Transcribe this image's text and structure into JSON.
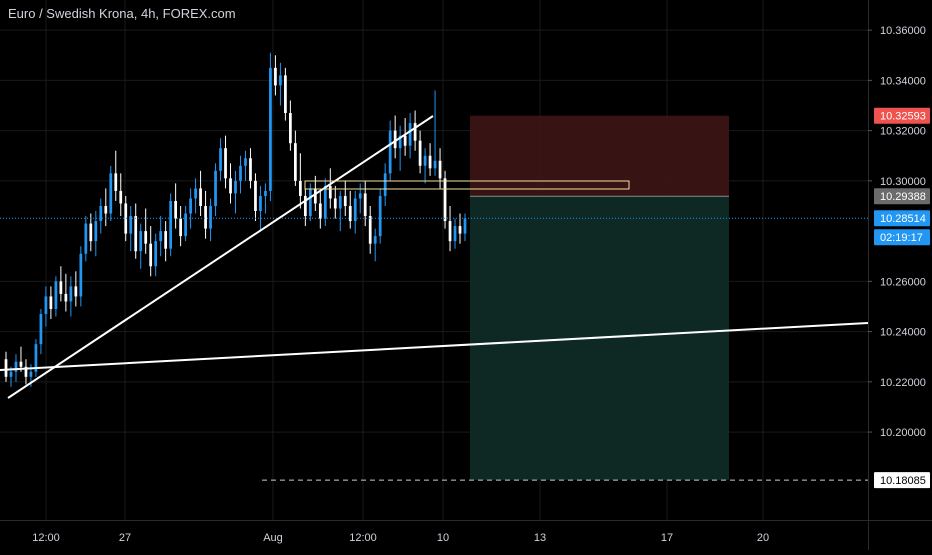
{
  "chart_data": {
    "type": "candlestick",
    "title": "Euro / Swedish Krona, 4h, FOREX.com",
    "ylim": [
      10.165,
      10.372
    ],
    "y_ticks": [
      "10.36000",
      "10.34000",
      "10.32000",
      "10.30000",
      "10.26000",
      "10.24000",
      "10.22000",
      "10.20000"
    ],
    "y_tick_values": [
      10.36,
      10.34,
      10.32,
      10.3,
      10.26,
      10.24,
      10.22,
      10.2
    ],
    "x_ticks": [
      "12:00",
      "27",
      "Aug",
      "12:00",
      "10",
      "13",
      "17",
      "20"
    ],
    "price_labels": [
      {
        "text": "10.32593",
        "value": 10.32593,
        "color": "#ef5350"
      },
      {
        "text": "10.29388",
        "value": 10.29388,
        "color": "#6b6b6b"
      },
      {
        "text": "10.28514",
        "value": 10.28514,
        "color": "#2196f3"
      },
      {
        "text": "02:19:17",
        "value": 10.2801,
        "color": "#2196f3"
      },
      {
        "text": "10.18085",
        "value": 10.18085,
        "color": "#ffffff"
      }
    ],
    "current_price": 10.28514,
    "entry_price": 10.29388,
    "stop_loss": 10.32593,
    "take_profit": 10.18085,
    "colors": {
      "up": "#2196f3",
      "down": "#ffffff",
      "loss_zone": "#3a1414",
      "profit_zone": "#0f2a25",
      "grid": "#1a1a1a"
    },
    "candles": [
      [
        10.229,
        10.232,
        10.22,
        10.222
      ],
      [
        10.222,
        10.226,
        10.218,
        10.224
      ],
      [
        10.224,
        10.231,
        10.22,
        10.228
      ],
      [
        10.228,
        10.234,
        10.224,
        10.226
      ],
      [
        10.226,
        10.229,
        10.219,
        10.222
      ],
      [
        10.222,
        10.227,
        10.218,
        10.224
      ],
      [
        10.224,
        10.237,
        10.222,
        10.235
      ],
      [
        10.235,
        10.249,
        10.231,
        10.247
      ],
      [
        10.247,
        10.258,
        10.242,
        10.254
      ],
      [
        10.254,
        10.258,
        10.245,
        10.249
      ],
      [
        10.249,
        10.262,
        10.246,
        10.26
      ],
      [
        10.26,
        10.266,
        10.252,
        10.255
      ],
      [
        10.255,
        10.263,
        10.248,
        10.252
      ],
      [
        10.252,
        10.262,
        10.246,
        10.258
      ],
      [
        10.258,
        10.264,
        10.25,
        10.254
      ],
      [
        10.254,
        10.274,
        10.25,
        10.271
      ],
      [
        10.271,
        10.286,
        10.268,
        10.283
      ],
      [
        10.283,
        10.287,
        10.272,
        10.276
      ],
      [
        10.276,
        10.288,
        10.27,
        10.284
      ],
      [
        10.284,
        10.293,
        10.279,
        10.29
      ],
      [
        10.29,
        10.297,
        10.282,
        10.287
      ],
      [
        10.287,
        10.306,
        10.284,
        10.303
      ],
      [
        10.303,
        10.312,
        10.292,
        10.296
      ],
      [
        10.296,
        10.303,
        10.286,
        10.291
      ],
      [
        10.291,
        10.294,
        10.276,
        10.279
      ],
      [
        10.279,
        10.29,
        10.272,
        10.286
      ],
      [
        10.286,
        10.291,
        10.269,
        10.272
      ],
      [
        10.272,
        10.283,
        10.265,
        10.28
      ],
      [
        10.28,
        10.289,
        10.271,
        10.275
      ],
      [
        10.275,
        10.282,
        10.262,
        10.266
      ],
      [
        10.266,
        10.279,
        10.262,
        10.276
      ],
      [
        10.276,
        10.286,
        10.27,
        10.28
      ],
      [
        10.28,
        10.284,
        10.268,
        10.273
      ],
      [
        10.273,
        10.295,
        10.27,
        10.292
      ],
      [
        10.292,
        10.299,
        10.281,
        10.285
      ],
      [
        10.285,
        10.29,
        10.274,
        10.278
      ],
      [
        10.278,
        10.29,
        10.276,
        10.287
      ],
      [
        10.287,
        10.297,
        10.281,
        10.293
      ],
      [
        10.293,
        10.301,
        10.287,
        10.297
      ],
      [
        10.297,
        10.304,
        10.286,
        10.29
      ],
      [
        10.29,
        10.296,
        10.277,
        10.281
      ],
      [
        10.281,
        10.293,
        10.276,
        10.29
      ],
      [
        10.29,
        10.307,
        10.286,
        10.304
      ],
      [
        10.304,
        10.317,
        10.3,
        10.313
      ],
      [
        10.313,
        10.318,
        10.297,
        10.301
      ],
      [
        10.301,
        10.307,
        10.291,
        10.295
      ],
      [
        10.295,
        10.304,
        10.287,
        10.3
      ],
      [
        10.3,
        10.31,
        10.295,
        10.306
      ],
      [
        10.306,
        10.312,
        10.3,
        10.309
      ],
      [
        10.309,
        10.313,
        10.297,
        10.3
      ],
      [
        10.3,
        10.303,
        10.284,
        10.288
      ],
      [
        10.288,
        10.298,
        10.28,
        10.294
      ],
      [
        10.294,
        10.299,
        10.287,
        10.296
      ],
      [
        10.296,
        10.351,
        10.292,
        10.345
      ],
      [
        10.345,
        10.35,
        10.334,
        10.338
      ],
      [
        10.338,
        10.347,
        10.33,
        10.342
      ],
      [
        10.342,
        10.345,
        10.324,
        10.327
      ],
      [
        10.327,
        10.332,
        10.312,
        10.315
      ],
      [
        10.315,
        10.32,
        10.298,
        10.3
      ],
      [
        10.3,
        10.311,
        10.289,
        10.294
      ],
      [
        10.294,
        10.297,
        10.282,
        10.286
      ],
      [
        10.286,
        10.299,
        10.284,
        10.297
      ],
      [
        10.297,
        10.302,
        10.288,
        10.291
      ],
      [
        10.291,
        10.296,
        10.281,
        10.285
      ],
      [
        10.285,
        10.301,
        10.282,
        10.298
      ],
      [
        10.298,
        10.305,
        10.289,
        10.293
      ],
      [
        10.293,
        10.298,
        10.285,
        10.289
      ],
      [
        10.289,
        10.296,
        10.28,
        10.294
      ],
      [
        10.294,
        10.3,
        10.286,
        10.29
      ],
      [
        10.29,
        10.296,
        10.281,
        10.284
      ],
      [
        10.284,
        10.296,
        10.279,
        10.293
      ],
      [
        10.293,
        10.299,
        10.287,
        10.295
      ],
      [
        10.295,
        10.3,
        10.282,
        10.286
      ],
      [
        10.286,
        10.29,
        10.271,
        10.275
      ],
      [
        10.275,
        10.281,
        10.268,
        10.278
      ],
      [
        10.278,
        10.297,
        10.275,
        10.294
      ],
      [
        10.294,
        10.307,
        10.29,
        10.303
      ],
      [
        10.303,
        10.324,
        10.3,
        10.32
      ],
      [
        10.32,
        10.326,
        10.309,
        10.313
      ],
      [
        10.313,
        10.322,
        10.304,
        10.318
      ],
      [
        10.318,
        10.325,
        10.31,
        10.314
      ],
      [
        10.314,
        10.327,
        10.309,
        10.323
      ],
      [
        10.323,
        10.328,
        10.312,
        10.316
      ],
      [
        10.316,
        10.32,
        10.303,
        10.306
      ],
      [
        10.306,
        10.313,
        10.299,
        10.31
      ],
      [
        10.31,
        10.315,
        10.302,
        10.305
      ],
      [
        10.305,
        10.336,
        10.302,
        10.308
      ],
      [
        10.308,
        10.313,
        10.297,
        10.301
      ],
      [
        10.301,
        10.304,
        10.281,
        10.284
      ],
      [
        10.284,
        10.29,
        10.272,
        10.276
      ],
      [
        10.276,
        10.285,
        10.273,
        10.282
      ],
      [
        10.282,
        10.287,
        10.275,
        10.279
      ],
      [
        10.279,
        10.287,
        10.276,
        10.285
      ]
    ]
  }
}
